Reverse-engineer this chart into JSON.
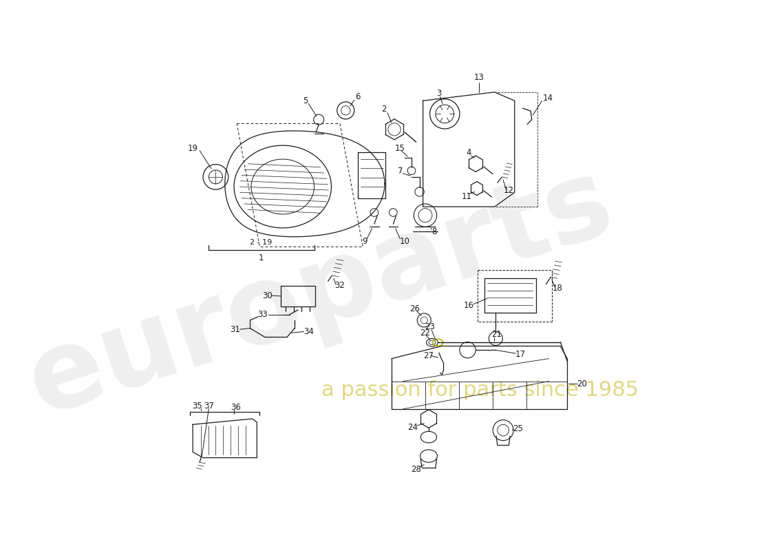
{
  "background_color": "#ffffff",
  "watermark_text1": "europarts",
  "watermark_text2": "a passion for parts since 1985",
  "line_color": "#1a1a1a",
  "fig_width": 11.0,
  "fig_height": 8.0
}
